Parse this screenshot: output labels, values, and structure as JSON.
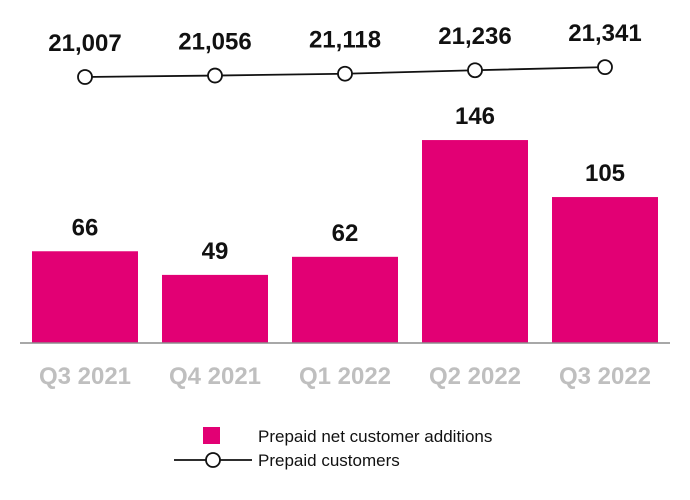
{
  "chart_data": {
    "type": "bar",
    "categories": [
      "Q3 2021",
      "Q4 2021",
      "Q1 2022",
      "Q2 2022",
      "Q3 2022"
    ],
    "series": [
      {
        "name": "Prepaid net customer additions",
        "chart": "bar",
        "values": [
          66,
          49,
          62,
          146,
          105
        ],
        "labels": [
          "66",
          "49",
          "62",
          "146",
          "105"
        ],
        "color": "#e20074"
      },
      {
        "name": "Prepaid customers",
        "chart": "line",
        "values": [
          21007,
          21056,
          21118,
          21236,
          21341
        ],
        "labels": [
          "21,007",
          "21,056",
          "21,118",
          "21,236",
          "21,341"
        ],
        "color": "#111111"
      }
    ],
    "legend": "bottom",
    "grid": false
  }
}
